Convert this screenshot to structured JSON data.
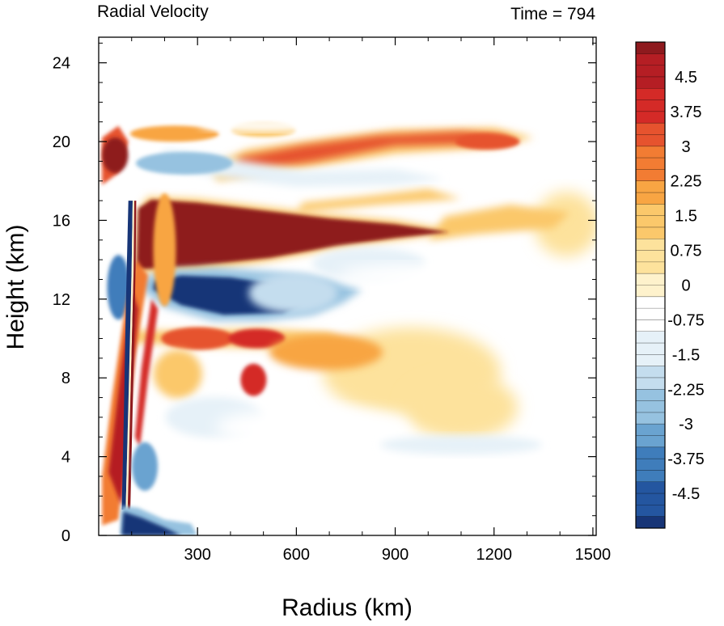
{
  "chart_data": {
    "type": "heatmap",
    "title_left": "Radial Velocity",
    "title_right": "Time = 794",
    "xlabel": "Radius (km)",
    "ylabel": "Height (km)",
    "xlim": [
      0,
      1510
    ],
    "ylim": [
      0,
      25.3
    ],
    "x_ticks": [
      300,
      600,
      900,
      1200,
      1500
    ],
    "y_ticks": [
      0,
      4,
      8,
      12,
      16,
      20,
      24
    ],
    "colorbar": {
      "levels_min": -5.25,
      "levels_max": 5.25,
      "level_step": 0.25,
      "labels": [
        "4.5",
        "3.75",
        "3",
        "2.25",
        "1.5",
        "0.75",
        "0",
        "-0.75",
        "-1.5",
        "-2.25",
        "-3",
        "-3.75",
        "-4.5"
      ],
      "label_values": [
        4.5,
        3.75,
        3,
        2.25,
        1.5,
        0.75,
        0,
        -0.75,
        -1.5,
        -2.25,
        -3,
        -3.75,
        -4.5
      ],
      "colors_top_to_bottom": [
        "#8e1a1e",
        "#b51e24",
        "#d42a27",
        "#e6532e",
        "#f27c33",
        "#f8a543",
        "#fbc86b",
        "#fde29c",
        "#fef2cc",
        "#ffffff",
        "#e6f1f8",
        "#c4ddee",
        "#96c2e0",
        "#6aa3d0",
        "#3f7dbb",
        "#2456a0",
        "#173577"
      ]
    },
    "features": [
      {
        "name": "upper outflow",
        "type": "positive",
        "value": 5.5,
        "x_range": [
          60,
          1060
        ],
        "y_range": [
          13.2,
          17.2
        ]
      },
      {
        "name": "mid-level inflow",
        "type": "negative",
        "value": -5.0,
        "x_range": [
          150,
          560
        ],
        "y_range": [
          10.8,
          13.6
        ]
      },
      {
        "name": "boundary-layer inflow",
        "type": "negative",
        "value": -5.0,
        "x_range": [
          60,
          290
        ],
        "y_range": [
          0,
          1.2
        ]
      },
      {
        "name": "upper-level outflow layer",
        "type": "positive",
        "value": 3.0,
        "x_range": [
          350,
          1300
        ],
        "y_range": [
          18.2,
          20.8
        ]
      },
      {
        "name": "outflow tail",
        "type": "positive",
        "value": 1.5,
        "x_range": [
          1050,
          1450
        ],
        "y_range": [
          15,
          17
        ]
      }
    ]
  }
}
